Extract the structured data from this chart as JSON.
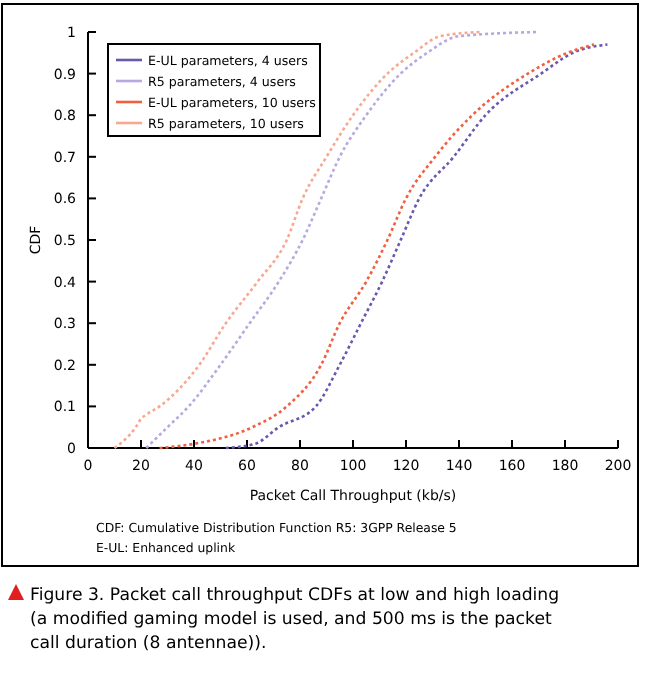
{
  "chart_data": {
    "type": "line",
    "xlabel": "Packet Call Throughput (kb/s)",
    "ylabel": "CDF",
    "xlim": [
      0,
      200
    ],
    "xticks": [
      0,
      20,
      40,
      60,
      80,
      100,
      120,
      140,
      160,
      180,
      200
    ],
    "ylim": [
      0,
      1
    ],
    "yticks": [
      0,
      0.1,
      0.2,
      0.3,
      0.4,
      0.5,
      0.6,
      0.7,
      0.8,
      0.9,
      1
    ],
    "legend": "top left",
    "grid": false,
    "marker": "none",
    "line_style": "dotted",
    "series": [
      {
        "name": "E-UL parameters, 4 users",
        "color": "#6a58b0",
        "x": [
          52,
          63,
          72,
          86,
          95,
          103,
          111,
          118,
          125,
          138,
          150,
          171,
          183,
          196
        ],
        "values": [
          0,
          0.01,
          0.05,
          0.1,
          0.2,
          0.3,
          0.4,
          0.5,
          0.6,
          0.7,
          0.8,
          0.9,
          0.95,
          0.97
        ]
      },
      {
        "name": "R5 parameters, 4 users",
        "color": "#b8a8e0",
        "x": [
          22,
          30,
          38,
          50,
          61,
          72,
          81,
          88,
          95,
          105,
          118,
          128,
          140,
          170
        ],
        "values": [
          0,
          0.05,
          0.1,
          0.2,
          0.3,
          0.4,
          0.5,
          0.6,
          0.7,
          0.8,
          0.9,
          0.95,
          0.99,
          1
        ]
      },
      {
        "name": "E-UL parameters, 10 users",
        "color": "#f06040",
        "x": [
          27,
          40,
          62,
          75,
          88,
          95,
          105,
          113,
          120,
          131,
          145,
          166,
          181,
          191
        ],
        "values": [
          0,
          0.01,
          0.05,
          0.1,
          0.2,
          0.3,
          0.4,
          0.5,
          0.6,
          0.7,
          0.8,
          0.9,
          0.95,
          0.97
        ]
      },
      {
        "name": "R5 parameters, 10 users",
        "color": "#f8a890",
        "x": [
          10,
          18,
          20,
          22,
          27,
          42,
          52,
          64,
          75,
          81,
          90,
          100,
          113,
          123,
          133,
          148
        ],
        "values": [
          0,
          0.05,
          0.07,
          0.08,
          0.1,
          0.2,
          0.3,
          0.4,
          0.5,
          0.6,
          0.7,
          0.8,
          0.9,
          0.95,
          0.99,
          1
        ]
      }
    ],
    "annotations": [
      "CDF: Cumulative Distribution Function   R5: 3GPP Release 5",
      "E-UL: Enhanced uplink",
      "Figure 3. Packet call throughput CDFs at low and high loading (a modified gaming model is used, and 500 ms is the packet call duration (8 antennae))."
    ]
  }
}
